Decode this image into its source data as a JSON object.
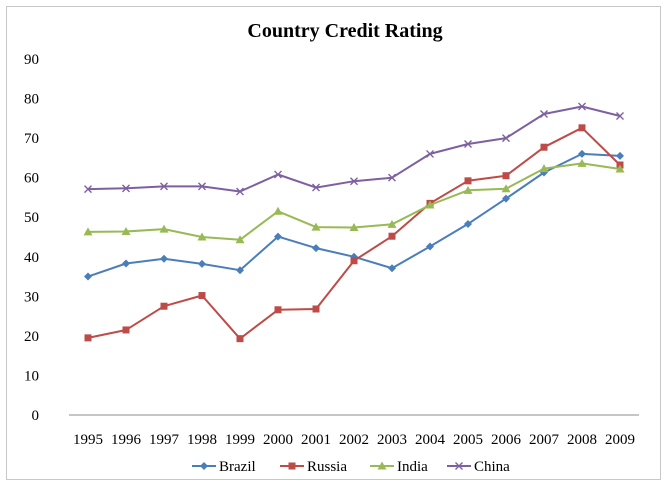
{
  "chart_data": {
    "type": "line",
    "title": "Country Credit Rating",
    "xlabel": "",
    "ylabel": "",
    "categories": [
      "1995",
      "1996",
      "1997",
      "1998",
      "1999",
      "2000",
      "2001",
      "2002",
      "2003",
      "2004",
      "2005",
      "2006",
      "2007",
      "2008",
      "2009"
    ],
    "yticks": [
      "0",
      "10",
      "20",
      "30",
      "40",
      "50",
      "60",
      "70",
      "80",
      "90"
    ],
    "ylim": [
      0,
      90
    ],
    "grid": false,
    "legend": "bottom",
    "series": [
      {
        "name": "Brazil",
        "color": "#4a7ebb",
        "marker": "diamond",
        "values": [
          35.0,
          38.3,
          39.5,
          38.2,
          36.6,
          45.1,
          42.2,
          40.0,
          37.1,
          42.6,
          48.3,
          54.7,
          61.3,
          66.0,
          65.5
        ]
      },
      {
        "name": "Russia",
        "color": "#be4b48",
        "marker": "square",
        "values": [
          19.5,
          21.5,
          27.5,
          30.2,
          19.3,
          26.6,
          26.8,
          39.0,
          45.2,
          53.5,
          59.2,
          60.5,
          67.7,
          72.6,
          63.2
        ]
      },
      {
        "name": "India",
        "color": "#98b954",
        "marker": "triangle",
        "values": [
          46.3,
          46.4,
          47.0,
          45.0,
          44.3,
          51.5,
          47.5,
          47.4,
          48.2,
          53.1,
          56.8,
          57.2,
          62.3,
          63.6,
          62.2
        ]
      },
      {
        "name": "China",
        "color": "#7d60a0",
        "marker": "x",
        "values": [
          57.1,
          57.3,
          57.8,
          57.8,
          56.5,
          60.8,
          57.5,
          59.1,
          60.0,
          66.0,
          68.5,
          70.0,
          76.1,
          78.0,
          75.6
        ]
      }
    ]
  }
}
